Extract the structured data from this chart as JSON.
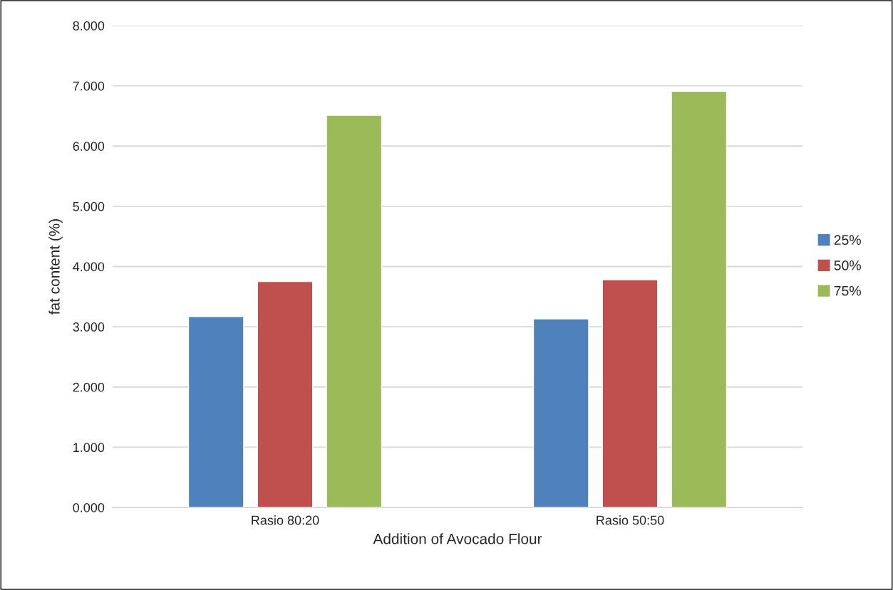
{
  "chart_data": {
    "type": "bar",
    "xlabel": "Addition of Avocado Flour",
    "ylabel": "fat content (%)",
    "categories": [
      "Rasio 80:20",
      "Rasio 50:50"
    ],
    "series": [
      {
        "name": "25%",
        "color": "#4f81bd",
        "values": [
          3.17,
          3.13
        ]
      },
      {
        "name": "50%",
        "color": "#c0504d",
        "values": [
          3.75,
          3.78
        ]
      },
      {
        "name": "75%",
        "color": "#9bbb59",
        "values": [
          6.51,
          6.91
        ]
      }
    ],
    "ylim": [
      0,
      8
    ],
    "yticks": [
      {
        "value": 0,
        "label": "0.000"
      },
      {
        "value": 1,
        "label": "1.000"
      },
      {
        "value": 2,
        "label": "2.000"
      },
      {
        "value": 3,
        "label": "3.000"
      },
      {
        "value": 4,
        "label": "4.000"
      },
      {
        "value": 5,
        "label": "5.000"
      },
      {
        "value": 6,
        "label": "6.000"
      },
      {
        "value": 7,
        "label": "7.000"
      },
      {
        "value": 8,
        "label": "8.000"
      }
    ],
    "grid": "y",
    "legend": "right"
  }
}
